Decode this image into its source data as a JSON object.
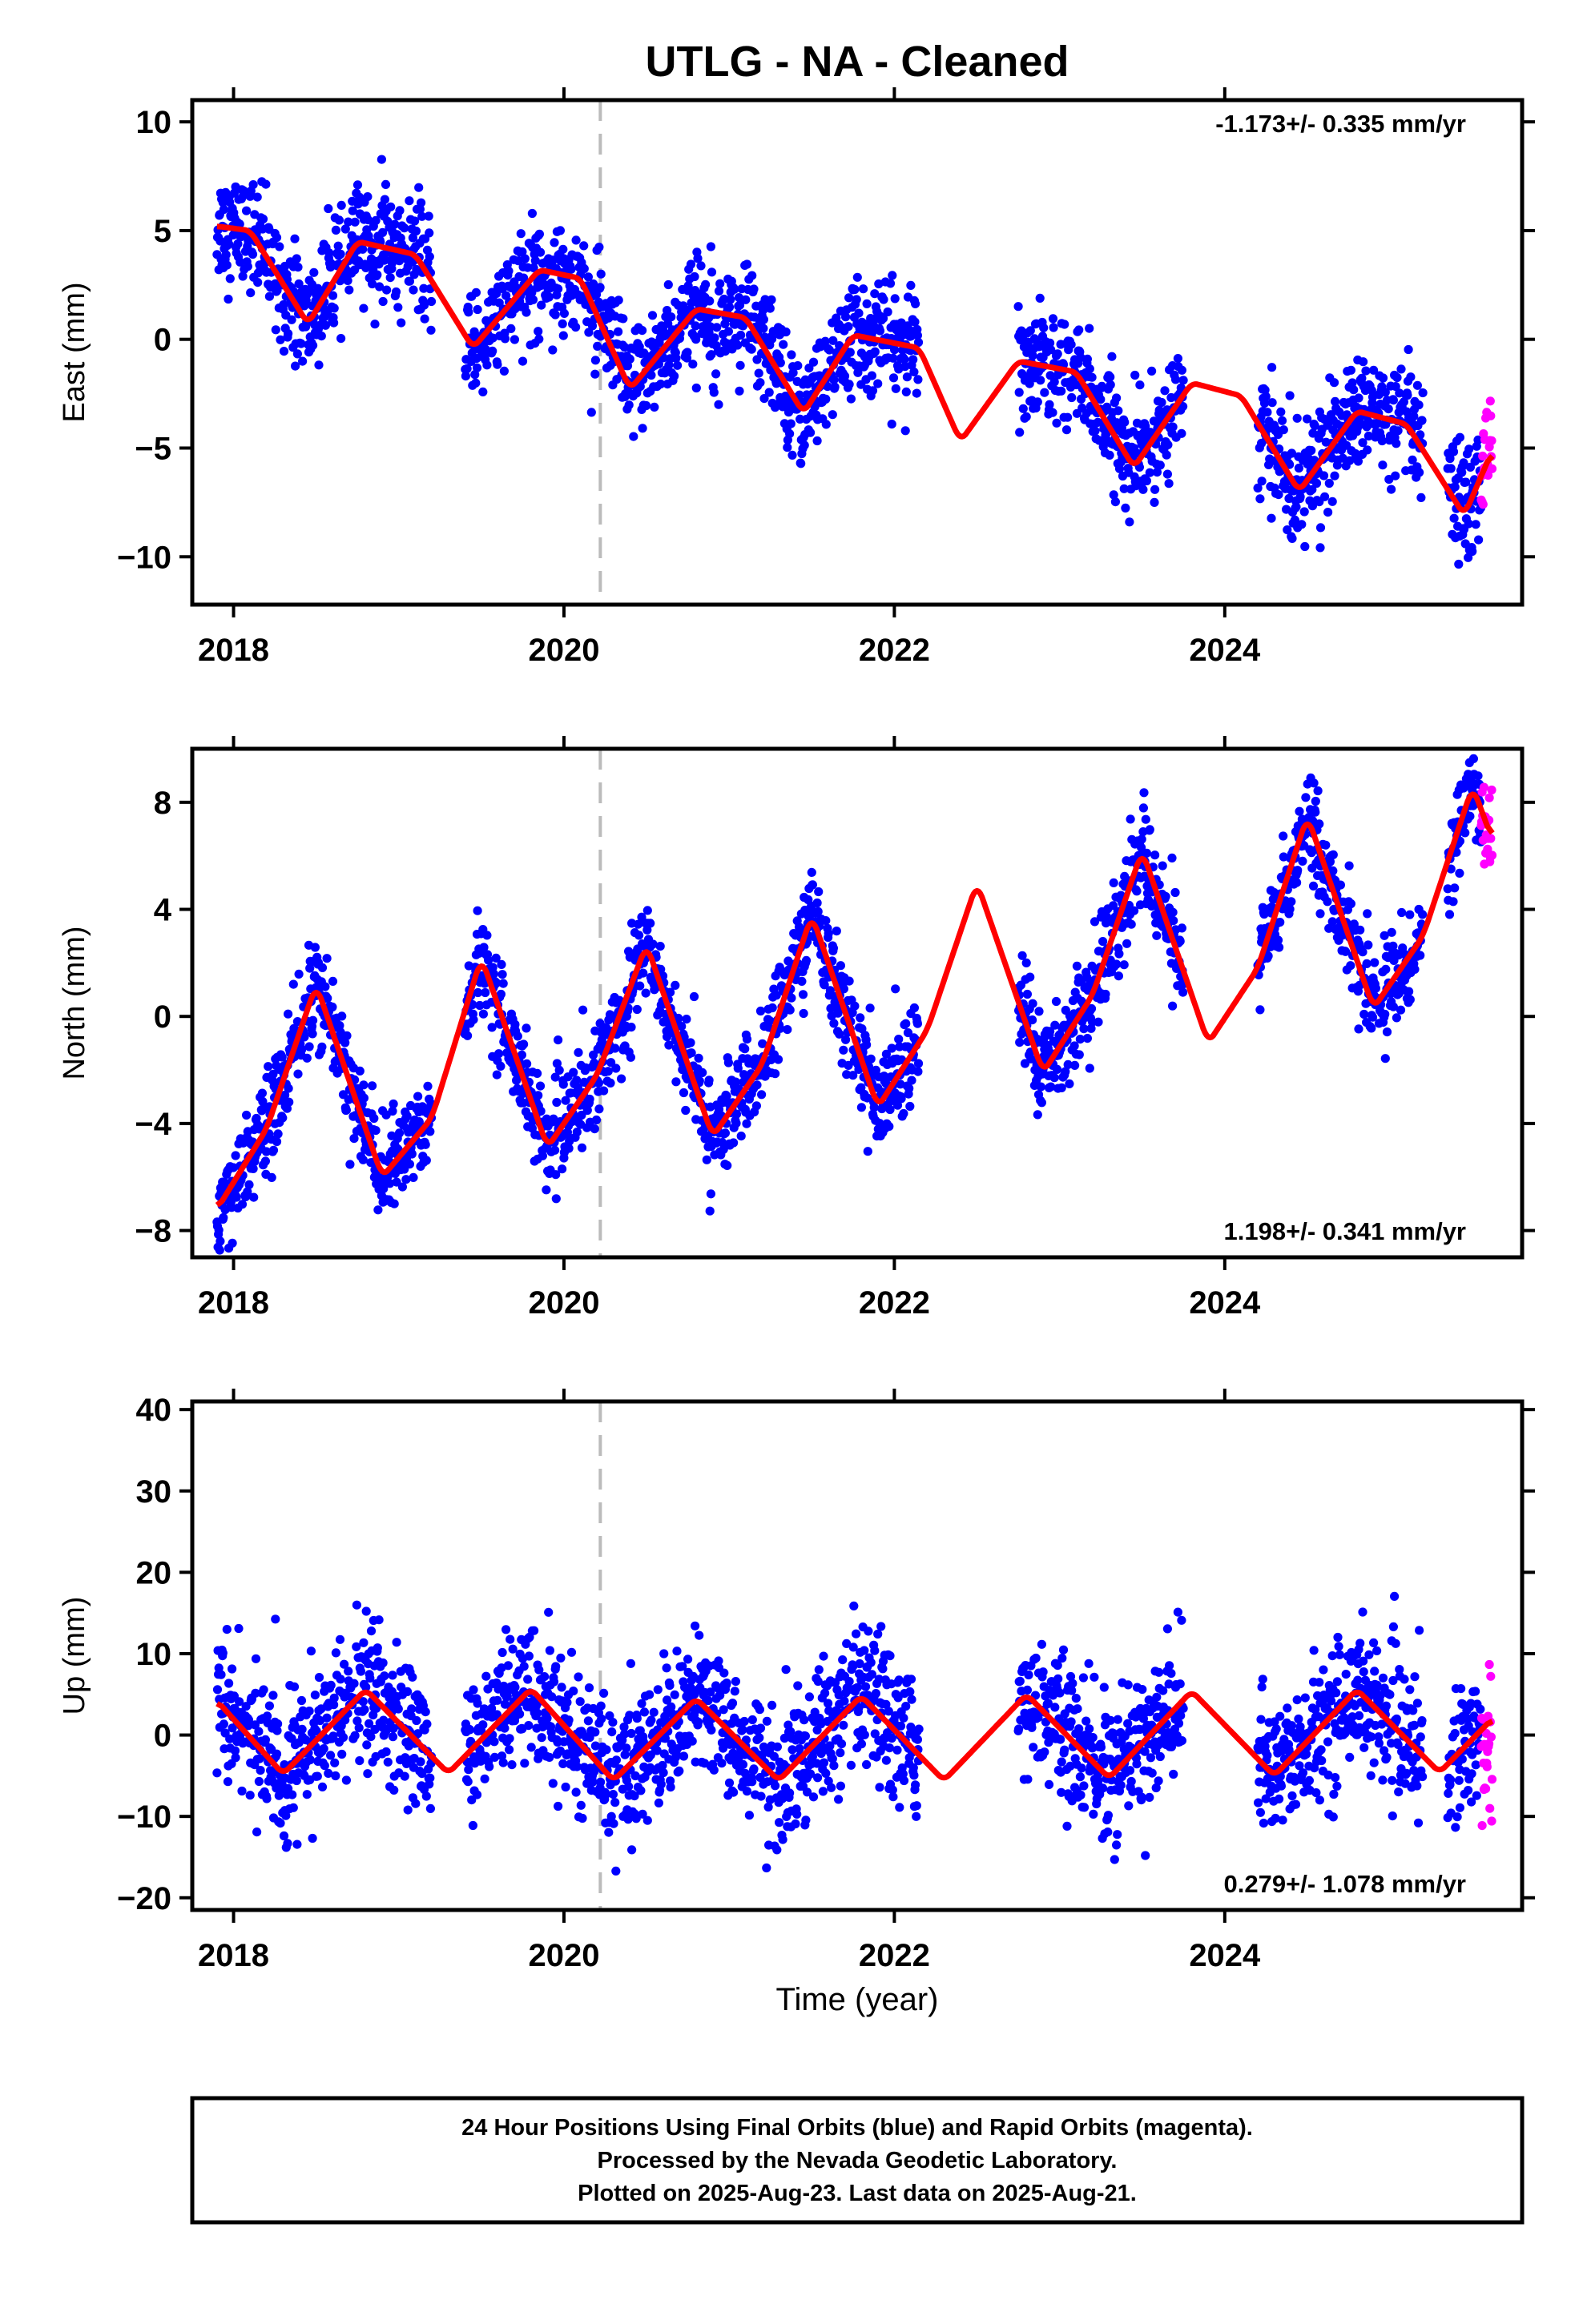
{
  "chart_data": {
    "type": "scatter",
    "title": "UTLG  - NA - Cleaned",
    "xlabel": "Time (year)",
    "x_range": [
      2017.75,
      2025.8
    ],
    "x_ticks": [
      2018,
      2020,
      2022,
      2024
    ],
    "x_tick_labels": [
      "2018",
      "2020",
      "2022",
      "2024"
    ],
    "marker_epoch": 2020.22,
    "colors": {
      "final": "#0000ff",
      "rapid": "#ff00ff",
      "model": "#ff0000",
      "marker": "#bbbbbb",
      "frame": "#000000"
    },
    "data_segments": [
      [
        2017.9,
        2019.2
      ],
      [
        2019.4,
        2022.15
      ],
      [
        2022.75,
        2023.75
      ],
      [
        2024.2,
        2025.2
      ],
      [
        2025.35,
        2025.62
      ]
    ],
    "rapid_segment": [
      2025.55,
      2025.62
    ],
    "panels": [
      {
        "id": "east",
        "ylabel": "East (mm)",
        "ylim": [
          -12.2,
          11
        ],
        "y_ticks": [
          10,
          5,
          0,
          -5,
          -10
        ],
        "y_tick_labels": [
          "10",
          "5",
          "0",
          "−5",
          "−10"
        ],
        "rate_label": "-1.173+/- 0.335 mm/yr",
        "rate_position": "top-right",
        "series": [
          {
            "name": "Final Orbits (blue)",
            "values": []
          },
          {
            "name": "Rapid Orbits (magenta)",
            "values": []
          }
        ],
        "model": {
          "trend": -1.173,
          "offset": 5.2,
          "ref_epoch": 2017.9,
          "annual_cos": -0.2,
          "annual_sin": 1.4,
          "semiannual_cos": 1.2,
          "semiannual_sin": 0.2,
          "noise": 1.25,
          "model_curve": [
            [
              2017.9,
              5.2
            ],
            [
              2018.1,
              5.0
            ],
            [
              2018.45,
              0.7
            ],
            [
              2018.75,
              4.5
            ],
            [
              2019.1,
              3.9
            ],
            [
              2019.45,
              -0.4
            ],
            [
              2019.85,
              3.2
            ],
            [
              2020.1,
              2.8
            ],
            [
              2020.4,
              -2.3
            ],
            [
              2020.8,
              1.4
            ],
            [
              2021.1,
              1.0
            ],
            [
              2021.45,
              -3.4
            ],
            [
              2021.75,
              0.2
            ],
            [
              2022.15,
              -0.4
            ],
            [
              2022.4,
              -4.7
            ],
            [
              2022.75,
              -1.0
            ],
            [
              2023.1,
              -1.5
            ],
            [
              2023.45,
              -5.9
            ],
            [
              2023.8,
              -2.0
            ],
            [
              2024.1,
              -2.6
            ],
            [
              2024.45,
              -7.0
            ],
            [
              2024.8,
              -3.3
            ],
            [
              2025.1,
              -3.9
            ],
            [
              2025.45,
              -8.1
            ],
            [
              2025.62,
              -5.1
            ]
          ]
        }
      },
      {
        "id": "north",
        "ylabel": "North (mm)",
        "ylim": [
          -9,
          10
        ],
        "y_ticks": [
          8,
          4,
          0,
          -4,
          -8
        ],
        "y_tick_labels": [
          "8",
          "4",
          "0",
          "−4",
          "−8"
        ],
        "rate_label": "1.198+/- 0.341 mm/yr",
        "rate_position": "bottom-right",
        "series": [
          {
            "name": "Final Orbits (blue)",
            "values": []
          },
          {
            "name": "Rapid Orbits (magenta)",
            "values": []
          }
        ],
        "model": {
          "trend": 1.198,
          "offset": -7.2,
          "ref_epoch": 2017.9,
          "annual_cos": -3.5,
          "annual_sin": 0.5,
          "semiannual_cos": 0.0,
          "semiannual_sin": 0.0,
          "noise": 0.9,
          "model_curve": [
            [
              2017.9,
              -7.2
            ],
            [
              2018.2,
              -4.2
            ],
            [
              2018.5,
              1.2
            ],
            [
              2018.9,
              -6.0
            ],
            [
              2019.2,
              -3.8
            ],
            [
              2019.5,
              2.2
            ],
            [
              2019.9,
              -4.9
            ],
            [
              2020.2,
              -2.2
            ],
            [
              2020.5,
              2.7
            ],
            [
              2020.9,
              -4.5
            ],
            [
              2021.2,
              -1.8
            ],
            [
              2021.5,
              3.8
            ],
            [
              2021.9,
              -3.4
            ],
            [
              2022.2,
              -0.5
            ],
            [
              2022.5,
              5.0
            ],
            [
              2022.9,
              -2.1
            ],
            [
              2023.2,
              0.8
            ],
            [
              2023.5,
              6.2
            ],
            [
              2023.9,
              -1.0
            ],
            [
              2024.2,
              1.8
            ],
            [
              2024.5,
              7.5
            ],
            [
              2024.9,
              0.3
            ],
            [
              2025.2,
              3.0
            ],
            [
              2025.5,
              8.6
            ],
            [
              2025.62,
              6.6
            ]
          ]
        }
      },
      {
        "id": "up",
        "ylabel": "Up (mm)",
        "ylim": [
          -21.5,
          41
        ],
        "y_ticks": [
          40,
          30,
          20,
          10,
          0,
          -10,
          -20
        ],
        "y_tick_labels": [
          "40",
          "30",
          "20",
          "10",
          "0",
          "−10",
          "−20"
        ],
        "rate_label": "0.279+/- 1.078 mm/yr",
        "rate_position": "bottom-right",
        "series": [
          {
            "name": "Final Orbits (blue)",
            "values": []
          },
          {
            "name": "Rapid Orbits (magenta)",
            "values": []
          }
        ],
        "model": {
          "trend": 0.279,
          "offset": 4.2,
          "ref_epoch": 2017.9,
          "annual_cos": 4.0,
          "annual_sin": 3.0,
          "semiannual_cos": 0.0,
          "semiannual_sin": 0.0,
          "noise": 4.2,
          "model_curve": [
            [
              2017.9,
              4.2
            ],
            [
              2018.3,
              -4.8
            ],
            [
              2018.8,
              5.6
            ],
            [
              2019.3,
              -4.7
            ],
            [
              2019.8,
              5.7
            ],
            [
              2020.3,
              -5.6
            ],
            [
              2020.8,
              4.5
            ],
            [
              2021.3,
              -5.6
            ],
            [
              2021.8,
              4.8
            ],
            [
              2022.3,
              -5.6
            ],
            [
              2022.8,
              5.0
            ],
            [
              2023.3,
              -5.3
            ],
            [
              2023.8,
              5.4
            ],
            [
              2024.3,
              -5.0
            ],
            [
              2024.8,
              5.6
            ],
            [
              2025.3,
              -4.6
            ],
            [
              2025.62,
              2.0
            ]
          ]
        }
      }
    ],
    "footer_lines": [
      "24 Hour Positions Using Final Orbits (blue) and Rapid Orbits (magenta).",
      "Processed by the Nevada Geodetic Laboratory.",
      "Plotted on 2025-Aug-23. Last data on 2025-Aug-21."
    ]
  }
}
